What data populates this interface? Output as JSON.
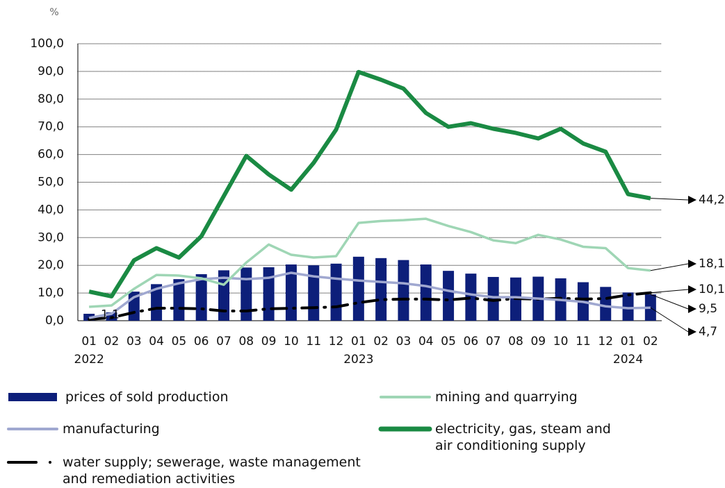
{
  "chart_data": {
    "type": "combo",
    "y_unit": "%",
    "categories": [
      "01",
      "02",
      "03",
      "04",
      "05",
      "06",
      "07",
      "08",
      "09",
      "10",
      "11",
      "12",
      "01",
      "02",
      "03",
      "04",
      "05",
      "06",
      "07",
      "08",
      "09",
      "10",
      "11",
      "12",
      "01",
      "02"
    ],
    "category_groups": [
      "2022",
      null,
      null,
      null,
      null,
      null,
      null,
      null,
      null,
      null,
      null,
      null,
      "2023",
      null,
      null,
      null,
      null,
      null,
      null,
      null,
      null,
      null,
      null,
      null,
      "2024",
      null
    ],
    "ylim": [
      0,
      100
    ],
    "yticks": [
      {
        "value": 0,
        "label": "0,0"
      },
      {
        "value": 10,
        "label": "10,0"
      },
      {
        "value": 20,
        "label": "20,0"
      },
      {
        "value": 30,
        "label": "30,0"
      },
      {
        "value": 40,
        "label": "40,0"
      },
      {
        "value": 50,
        "label": "50,0"
      },
      {
        "value": 60,
        "label": "60,0"
      },
      {
        "value": 70,
        "label": "70,0"
      },
      {
        "value": 80,
        "label": "80,0"
      },
      {
        "value": 90,
        "label": "90,0"
      },
      {
        "value": 100,
        "label": "100,0"
      }
    ],
    "grid": true,
    "series": [
      {
        "name": "prices of sold production",
        "type": "bar",
        "color": "#0d1f7a",
        "values": [
          2.5,
          3,
          10.5,
          13.2,
          15,
          16.8,
          18.2,
          19.2,
          19.3,
          20.3,
          20,
          20.6,
          23.1,
          22.6,
          21.9,
          20.3,
          18,
          17,
          15.8,
          15.6,
          15.9,
          15.3,
          13.9,
          12.2,
          10.2,
          9.5
        ],
        "value_labels": [
          null,
          null,
          null,
          null,
          null,
          null,
          null,
          null,
          null,
          null,
          null,
          null,
          null,
          null,
          null,
          null,
          null,
          null,
          null,
          null,
          null,
          null,
          null,
          null,
          null,
          "9,5"
        ]
      },
      {
        "name": "manufacturing",
        "type": "line",
        "color": "#a0a8d0",
        "values": [
          1,
          2.5,
          8.5,
          11.5,
          13.5,
          15,
          15.5,
          15,
          15.5,
          17.3,
          16,
          15.2,
          14.5,
          14,
          13.5,
          12.5,
          10.8,
          9.5,
          8.5,
          8.5,
          8,
          7.5,
          6.8,
          5.2,
          4.5,
          4.7
        ],
        "value_labels": [
          null,
          null,
          null,
          null,
          null,
          null,
          null,
          null,
          null,
          null,
          null,
          null,
          null,
          null,
          null,
          null,
          null,
          null,
          null,
          null,
          null,
          null,
          null,
          null,
          null,
          "4,7"
        ]
      },
      {
        "name": "water supply; sewerage, waste management and remediation activities",
        "type": "line",
        "dash": true,
        "color": "#000000",
        "values": [
          0.5,
          1.1,
          3,
          4.5,
          4.5,
          4.3,
          3.5,
          3.5,
          4.3,
          4.5,
          4.7,
          5,
          6.5,
          7.6,
          7.8,
          7.8,
          7.5,
          8.2,
          7.3,
          8,
          7.8,
          8.1,
          7.8,
          8,
          9.3,
          10.1
        ],
        "value_labels": [
          null,
          "1,1",
          null,
          null,
          null,
          null,
          null,
          null,
          null,
          null,
          null,
          null,
          null,
          null,
          null,
          null,
          null,
          null,
          null,
          null,
          null,
          null,
          null,
          null,
          null,
          "10,1"
        ]
      },
      {
        "name": "mining and quarrying",
        "type": "line",
        "color": "#9fd6b5",
        "values": [
          5,
          5.5,
          11.5,
          16.5,
          16.3,
          15.3,
          13,
          21,
          27.5,
          23.8,
          22.8,
          23.3,
          35.3,
          36,
          36.3,
          36.8,
          34.2,
          32,
          29,
          28,
          31,
          29.3,
          26.7,
          26.2,
          19,
          18.1
        ],
        "value_labels": [
          null,
          null,
          null,
          null,
          null,
          null,
          null,
          null,
          null,
          null,
          null,
          null,
          null,
          null,
          null,
          null,
          null,
          null,
          null,
          null,
          null,
          null,
          null,
          null,
          null,
          "18,1"
        ]
      },
      {
        "name": "electricity, gas, steam and air conditioning supply",
        "type": "line",
        "color": "#1a8a43",
        "values": [
          10.5,
          8.8,
          21.8,
          26.2,
          22.8,
          30.5,
          45,
          59.5,
          52.8,
          47.3,
          57,
          69,
          89.8,
          87,
          83.8,
          75,
          70,
          71.3,
          69.3,
          67.8,
          65.8,
          69.3,
          64,
          61,
          45.7,
          44.2
        ],
        "value_labels": [
          null,
          null,
          null,
          null,
          null,
          null,
          null,
          null,
          null,
          null,
          null,
          null,
          null,
          null,
          null,
          null,
          null,
          null,
          null,
          null,
          null,
          null,
          null,
          null,
          null,
          "44,2"
        ]
      }
    ]
  }
}
